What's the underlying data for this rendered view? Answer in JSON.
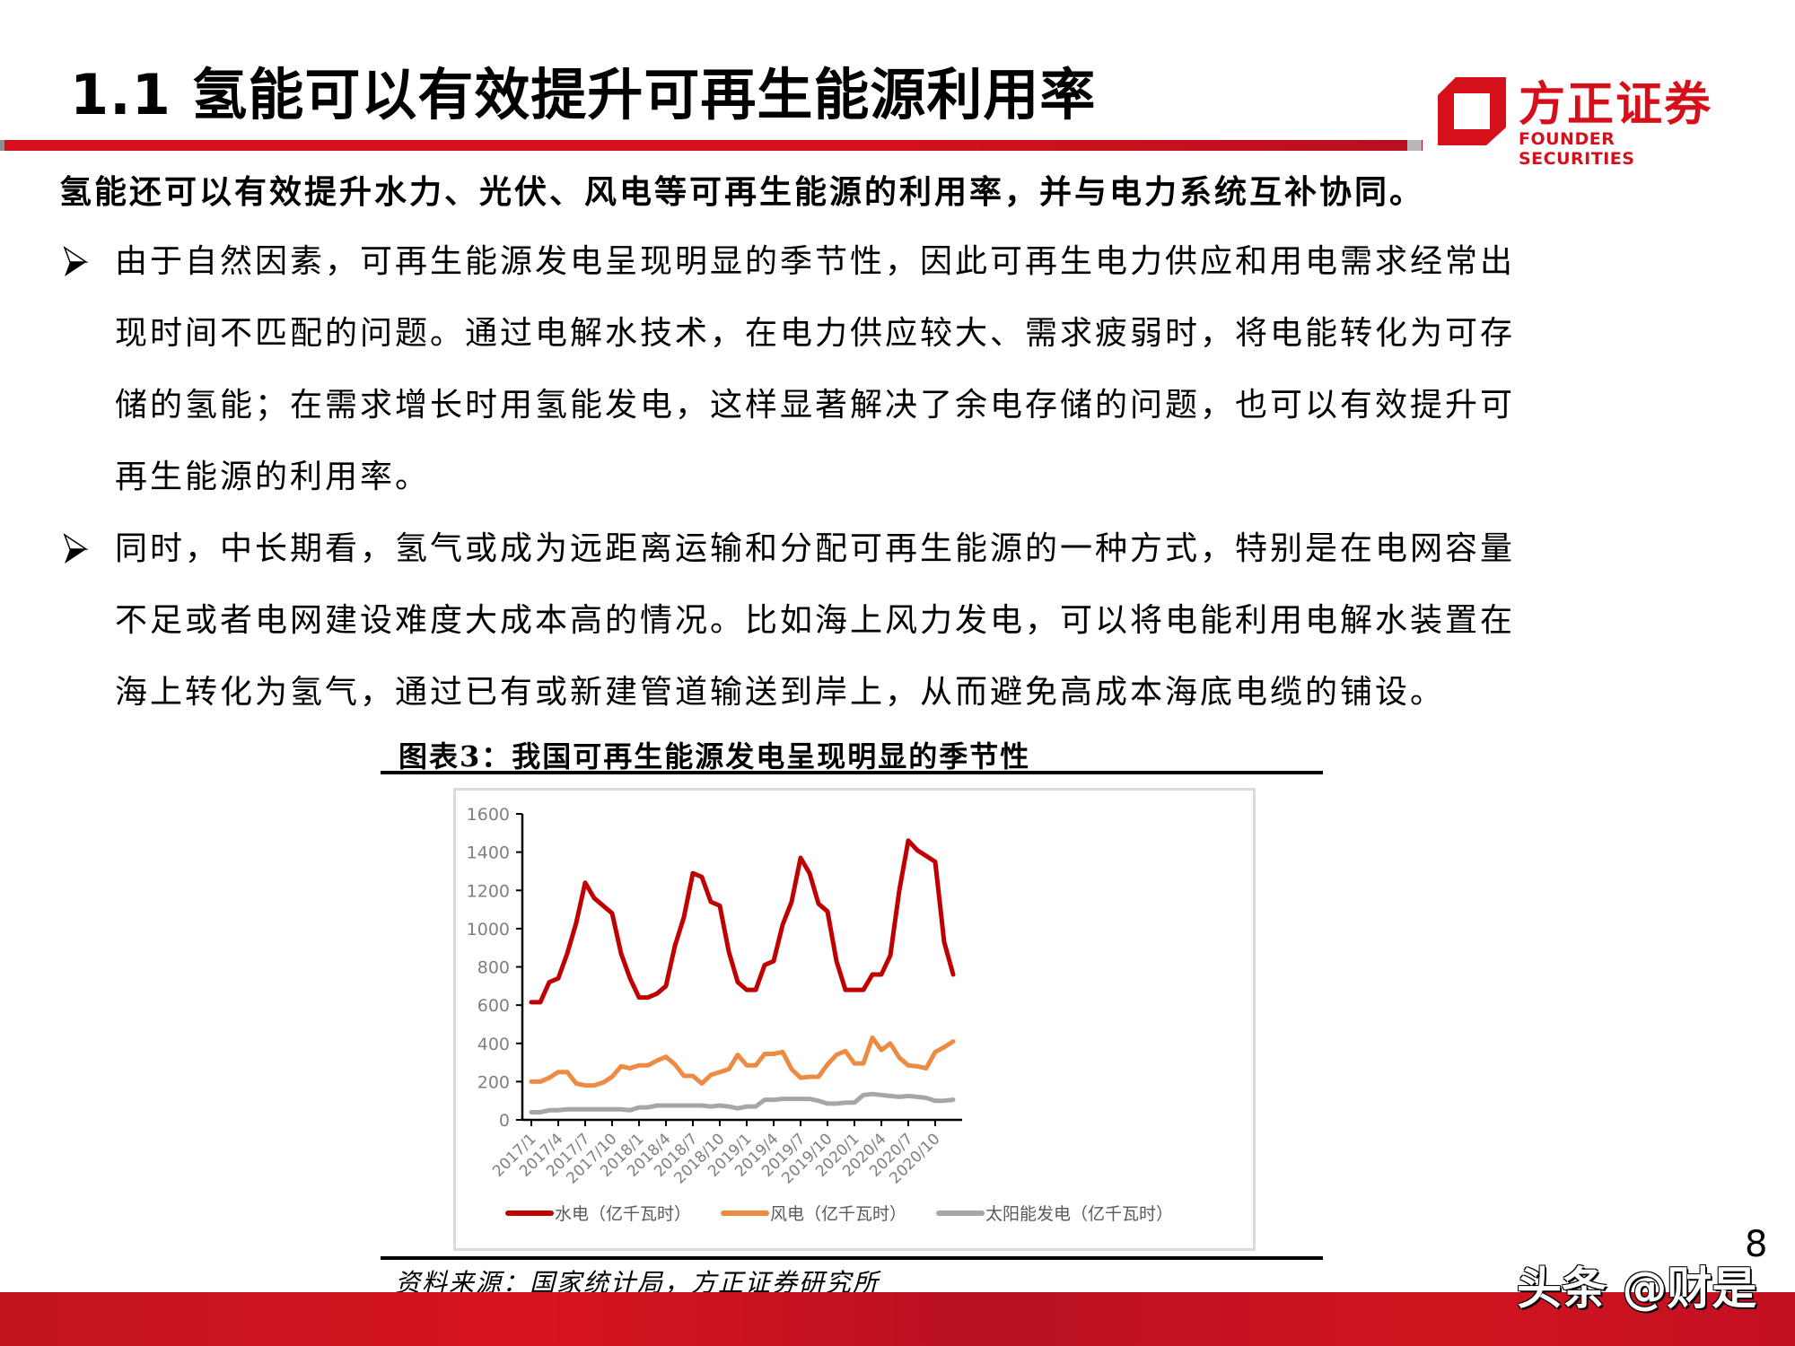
{
  "header": {
    "title": "1.1 氢能可以有效提升可再生能源利用率",
    "logo_cn": "方正证券",
    "logo_en": "FOUNDER SECURITIES",
    "brand_color": "#d6101b"
  },
  "body": {
    "lead": "氢能还可以有效提升水力、光伏、风电等可再生能源的利用率，并与电力系统互补协同。",
    "bullets": [
      {
        "icon": "arrow-bullet-icon",
        "lines": [
          "由于自然因素，可再生能源发电呈现明显的季节性，因此可再生电力供应和用电需求经常出",
          "现时间不匹配的问题。通过电解水技术，在电力供应较大、需求疲弱时，将电能转化为可存",
          "储的氢能；在需求增长时用氢能发电，这样显著解决了余电存储的问题，也可以有效提升可",
          "再生能源的利用率。"
        ]
      },
      {
        "icon": "arrow-bullet-icon",
        "lines": [
          "同时，中长期看，氢气或成为远距离运输和分配可再生能源的一种方式，特别是在电网容量",
          "不足或者电网建设难度大成本高的情况。比如海上风力发电，可以将电能利用电解水装置在",
          "海上转化为氢气，通过已有或新建管道输送到岸上，从而避免高成本海底电缆的铺设。"
        ]
      }
    ]
  },
  "figure": {
    "title": "图表3：我国可再生能源发电呈现明显的季节性",
    "source": "资料来源：国家统计局，方正证券研究所"
  },
  "footer": {
    "page_number": "8",
    "watermark": "头条 @财是"
  },
  "chart_data": {
    "type": "line",
    "title": "图表3：我国可再生能源发电呈现明显的季节性",
    "xlabel": "",
    "ylabel": "",
    "ylim": [
      0,
      1600
    ],
    "yticks": [
      0,
      200,
      400,
      600,
      800,
      1000,
      1200,
      1400,
      1600
    ],
    "grid": false,
    "legend_position": "bottom",
    "x_tick_labels": [
      "2017/1",
      "2017/4",
      "2017/7",
      "2017/10",
      "2018/1",
      "2018/4",
      "2018/7",
      "2018/10",
      "2019/1",
      "2019/4",
      "2019/7",
      "2019/10",
      "2020/1",
      "2020/4",
      "2020/7",
      "2020/10"
    ],
    "x": [
      "2017/1",
      "2017/2",
      "2017/3",
      "2017/4",
      "2017/5",
      "2017/6",
      "2017/7",
      "2017/8",
      "2017/9",
      "2017/10",
      "2017/11",
      "2017/12",
      "2018/1",
      "2018/2",
      "2018/3",
      "2018/4",
      "2018/5",
      "2018/6",
      "2018/7",
      "2018/8",
      "2018/9",
      "2018/10",
      "2018/11",
      "2018/12",
      "2019/1",
      "2019/2",
      "2019/3",
      "2019/4",
      "2019/5",
      "2019/6",
      "2019/7",
      "2019/8",
      "2019/9",
      "2019/10",
      "2019/11",
      "2019/12",
      "2020/1",
      "2020/2",
      "2020/3",
      "2020/4",
      "2020/5",
      "2020/6",
      "2020/7",
      "2020/8",
      "2020/9",
      "2020/10",
      "2020/11",
      "2020/12"
    ],
    "series": [
      {
        "name": "水电（亿千瓦时）",
        "color": "#c00000",
        "values": [
          615,
          615,
          720,
          740,
          870,
          1030,
          1240,
          1160,
          1120,
          1080,
          870,
          740,
          640,
          640,
          660,
          700,
          910,
          1060,
          1290,
          1270,
          1140,
          1120,
          880,
          720,
          680,
          680,
          810,
          830,
          1020,
          1140,
          1370,
          1290,
          1130,
          1090,
          830,
          680,
          680,
          680,
          760,
          760,
          860,
          1200,
          1460,
          1410,
          1380,
          1350,
          930,
          760
        ]
      },
      {
        "name": "风电（亿千瓦时）",
        "color": "#ed8b45",
        "values": [
          200,
          200,
          220,
          250,
          250,
          190,
          180,
          180,
          195,
          225,
          280,
          270,
          285,
          285,
          310,
          330,
          290,
          230,
          230,
          190,
          235,
          250,
          265,
          340,
          285,
          285,
          345,
          345,
          355,
          265,
          220,
          225,
          225,
          290,
          340,
          360,
          295,
          295,
          430,
          365,
          400,
          325,
          285,
          280,
          270,
          355,
          380,
          410
        ]
      },
      {
        "name": "太阳能发电（亿千瓦时）",
        "color": "#a6a6a6",
        "values": [
          40,
          40,
          50,
          50,
          55,
          55,
          55,
          55,
          55,
          55,
          55,
          50,
          65,
          65,
          75,
          75,
          75,
          75,
          75,
          75,
          70,
          75,
          70,
          60,
          70,
          70,
          105,
          105,
          110,
          110,
          110,
          110,
          100,
          85,
          85,
          90,
          90,
          130,
          135,
          130,
          125,
          120,
          125,
          120,
          115,
          100,
          100,
          105
        ]
      }
    ]
  }
}
